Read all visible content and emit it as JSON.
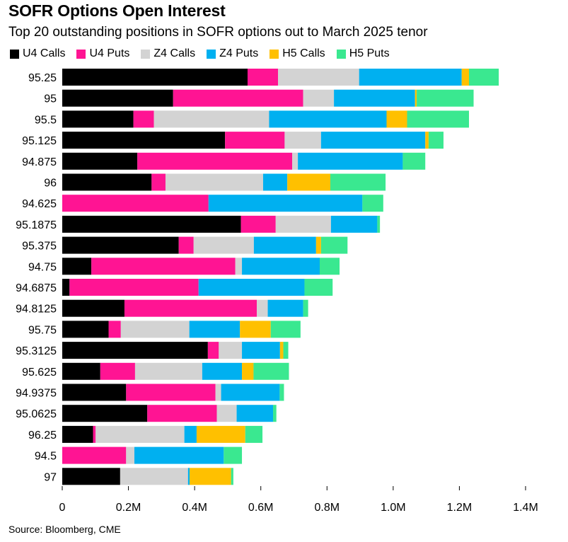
{
  "header": {
    "title": "SOFR Options Open Interest",
    "subtitle": "Top 20 outstanding positions in SOFR options out to March 2025 tenor"
  },
  "footer": {
    "source": "Source: Bloomberg, CME"
  },
  "chart_data": {
    "type": "bar",
    "orientation": "horizontal",
    "stacked": true,
    "categories": [
      "95.25",
      "95",
      "95.5",
      "95.125",
      "94.875",
      "96",
      "94.625",
      "95.1875",
      "95.375",
      "94.75",
      "94.6875",
      "94.8125",
      "95.75",
      "95.3125",
      "95.625",
      "94.9375",
      "95.0625",
      "96.25",
      "94.5",
      "97"
    ],
    "series": [
      {
        "name": "U4 Calls",
        "color": "#000000",
        "values": [
          560000,
          335000,
          215000,
          492000,
          227000,
          270000,
          0,
          540000,
          352000,
          88000,
          22000,
          188000,
          140000,
          440000,
          115000,
          193000,
          257000,
          93000,
          0,
          175000
        ]
      },
      {
        "name": "U4 Puts",
        "color": "#ff1493",
        "values": [
          92000,
          393000,
          62000,
          180000,
          468000,
          42000,
          442000,
          105000,
          45000,
          435000,
          390000,
          400000,
          37000,
          33000,
          105000,
          270000,
          210000,
          8000,
          193000,
          0
        ]
      },
      {
        "name": "Z4 Calls",
        "color": "#d3d3d3",
        "values": [
          245000,
          93000,
          348000,
          110000,
          17000,
          295000,
          0,
          167000,
          182000,
          20000,
          0,
          33000,
          207000,
          70000,
          203000,
          17000,
          60000,
          268000,
          25000,
          205000
        ]
      },
      {
        "name": "Z4 Puts",
        "color": "#00b0f0",
        "values": [
          310000,
          245000,
          355000,
          315000,
          317000,
          73000,
          465000,
          140000,
          188000,
          235000,
          320000,
          107000,
          153000,
          115000,
          120000,
          177000,
          110000,
          37000,
          270000,
          5000
        ]
      },
      {
        "name": "H5 Calls",
        "color": "#ffc000",
        "values": [
          22000,
          5000,
          62000,
          10000,
          0,
          130000,
          0,
          0,
          15000,
          0,
          0,
          0,
          93000,
          10000,
          35000,
          0,
          0,
          147000,
          0,
          125000
        ]
      },
      {
        "name": "H5 Puts",
        "color": "#3ae890",
        "values": [
          90000,
          172000,
          187000,
          45000,
          68000,
          167000,
          63000,
          8000,
          80000,
          60000,
          85000,
          15000,
          90000,
          15000,
          107000,
          13000,
          10000,
          52000,
          55000,
          7000
        ]
      }
    ],
    "xlim": [
      0,
      1400000
    ],
    "xticks": [
      0,
      200000,
      400000,
      600000,
      800000,
      1000000,
      1200000,
      1400000
    ],
    "xtick_labels": [
      "0",
      "0.2M",
      "0.4M",
      "0.6M",
      "0.8M",
      "1.0M",
      "1.2M",
      "1.4M"
    ],
    "legend_position": "top-left",
    "grid": false
  }
}
